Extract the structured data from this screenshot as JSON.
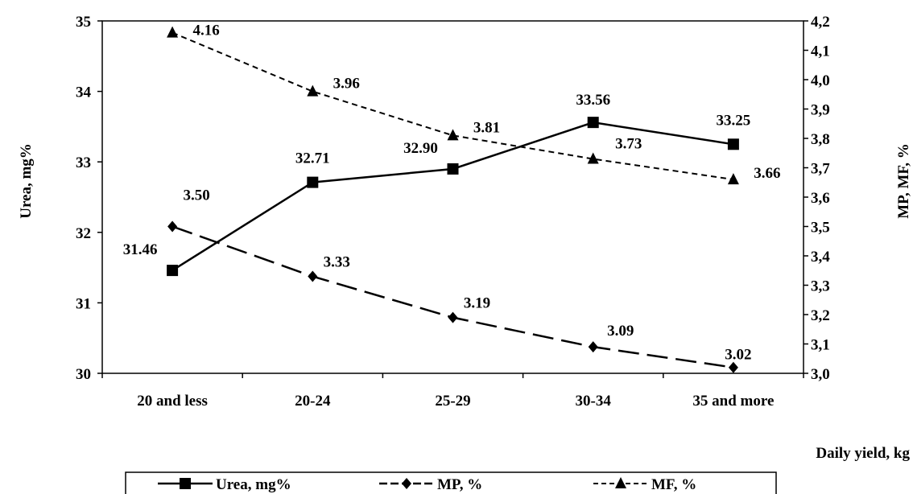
{
  "chart_data": {
    "type": "line",
    "categories": [
      "20 and less",
      "20-24",
      "25-29",
      "30-34",
      "35 and more"
    ],
    "xlabel": "Daily yield, kg",
    "ylabel_left": "Urea, mg%",
    "ylabel_right": "MP, MF, %",
    "ylim_left": [
      30,
      35
    ],
    "yticks_left": [
      "30",
      "31",
      "32",
      "33",
      "34",
      "35"
    ],
    "ylim_right": [
      3.0,
      4.2
    ],
    "yticks_right": [
      "3,0",
      "3,1",
      "3,2",
      "3,3",
      "3,4",
      "3,5",
      "3,6",
      "3,7",
      "3,8",
      "3,9",
      "4,0",
      "4,1",
      "4,2"
    ],
    "grid": false,
    "legend_position": "bottom",
    "series": [
      {
        "name": "Urea, mg%",
        "axis": "left",
        "values": [
          31.46,
          32.71,
          32.9,
          33.56,
          33.25
        ],
        "labels": [
          "31.46",
          "32.71",
          "32.90",
          "33.56",
          "33.25"
        ],
        "marker": "square",
        "dash": "solid"
      },
      {
        "name": "MP, %",
        "axis": "right",
        "values": [
          3.5,
          3.33,
          3.19,
          3.09,
          3.02
        ],
        "labels": [
          "3.50",
          "3.33",
          "3.19",
          "3.09",
          "3.02"
        ],
        "marker": "diamond",
        "dash": "long-dash"
      },
      {
        "name": "MF, %",
        "axis": "right",
        "values": [
          4.16,
          3.96,
          3.81,
          3.73,
          3.66
        ],
        "labels": [
          "4.16",
          "3.96",
          "3.81",
          "3.73",
          "3.66"
        ],
        "marker": "triangle",
        "dash": "short-dash"
      }
    ]
  }
}
